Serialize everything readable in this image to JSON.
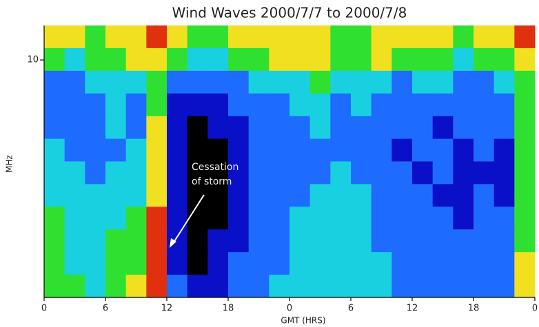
{
  "chart_data": {
    "type": "heatmap",
    "title": "Wind Waves 2000/7/7 to 2000/7/8",
    "x_label": "GMT (HRS)",
    "y_label": "MHz",
    "annotation": [
      "Cessation",
      "of storm"
    ],
    "xlim": [
      0,
      48
    ],
    "xticks": [
      0,
      6,
      12,
      18,
      {
        "value": 24,
        "label": "0"
      },
      {
        "value": 30,
        "label": "6"
      },
      {
        "value": 36,
        "label": "12"
      },
      {
        "value": 42,
        "label": "18"
      },
      {
        "value": 48,
        "label": "0"
      }
    ],
    "ylim": [
      1.075,
      13.825
    ],
    "yticks": [
      10
    ],
    "log_y": true,
    "colorscale": [
      "#000000",
      "#0a10c8",
      "#1e6cff",
      "#19d0e0",
      "#30e030",
      "#f0e020",
      "#e03010"
    ],
    "z": [
      [
        5,
        5,
        4,
        5,
        5,
        6,
        5,
        4,
        4,
        5,
        5,
        5,
        5,
        5,
        4,
        4,
        5,
        5,
        5,
        5,
        4,
        5,
        5,
        6
      ],
      [
        4,
        3,
        4,
        4,
        5,
        5,
        4,
        3,
        3,
        4,
        4,
        5,
        5,
        5,
        4,
        4,
        5,
        4,
        4,
        4,
        3,
        4,
        4,
        5
      ],
      [
        2,
        2,
        3,
        3,
        3,
        4,
        2,
        2,
        2,
        2,
        3,
        3,
        3,
        4,
        3,
        3,
        3,
        2,
        3,
        3,
        2,
        2,
        3,
        4
      ],
      [
        2,
        2,
        2,
        3,
        2,
        4,
        1,
        1,
        1,
        2,
        2,
        2,
        3,
        3,
        2,
        3,
        2,
        2,
        2,
        2,
        2,
        2,
        2,
        4
      ],
      [
        2,
        2,
        2,
        3,
        2,
        5,
        1,
        0,
        1,
        1,
        2,
        2,
        2,
        3,
        2,
        2,
        2,
        2,
        2,
        1,
        2,
        2,
        2,
        4
      ],
      [
        3,
        2,
        2,
        2,
        3,
        5,
        1,
        0,
        0,
        1,
        2,
        2,
        2,
        2,
        2,
        2,
        2,
        1,
        2,
        2,
        1,
        2,
        1,
        4
      ],
      [
        3,
        3,
        2,
        3,
        3,
        5,
        1,
        0,
        0,
        1,
        2,
        2,
        2,
        2,
        3,
        2,
        2,
        2,
        1,
        2,
        1,
        1,
        1,
        4
      ],
      [
        3,
        3,
        3,
        3,
        3,
        5,
        1,
        0,
        0,
        1,
        2,
        2,
        2,
        3,
        3,
        3,
        2,
        2,
        2,
        1,
        1,
        2,
        1,
        4
      ],
      [
        4,
        3,
        3,
        3,
        4,
        6,
        1,
        0,
        0,
        1,
        2,
        2,
        3,
        3,
        3,
        3,
        2,
        2,
        2,
        2,
        1,
        2,
        2,
        4
      ],
      [
        4,
        3,
        3,
        4,
        4,
        6,
        1,
        0,
        1,
        1,
        2,
        2,
        3,
        3,
        3,
        3,
        2,
        2,
        2,
        2,
        2,
        2,
        2,
        4
      ],
      [
        4,
        3,
        3,
        4,
        4,
        6,
        1,
        0,
        1,
        2,
        2,
        2,
        3,
        3,
        3,
        3,
        3,
        2,
        2,
        2,
        2,
        2,
        2,
        5
      ],
      [
        4,
        4,
        3,
        4,
        5,
        6,
        2,
        1,
        1,
        2,
        2,
        3,
        3,
        3,
        3,
        3,
        3,
        2,
        2,
        2,
        2,
        2,
        2,
        5
      ]
    ]
  }
}
